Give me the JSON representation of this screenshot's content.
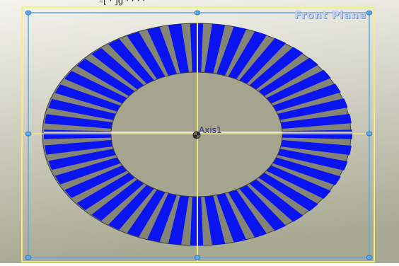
{
  "viewport": {
    "caption_fragment": "–[ · ]g · · · ·",
    "plane_label": "Front Plane",
    "axis_label": "Axis1",
    "colors": {
      "background_light": "#f4f4ee",
      "background_dark": "#a8a993",
      "ring_gray": "#858576",
      "slot_blue": "#0a14f0",
      "inner_face": "#a5a58f",
      "plane_border": "#5aa8e8",
      "sketch_yellow": "#f4f07a",
      "axis_white": "#ffffff"
    },
    "slot_count": 44,
    "icons": [
      "origin-icon",
      "plane-handle-icon"
    ]
  }
}
